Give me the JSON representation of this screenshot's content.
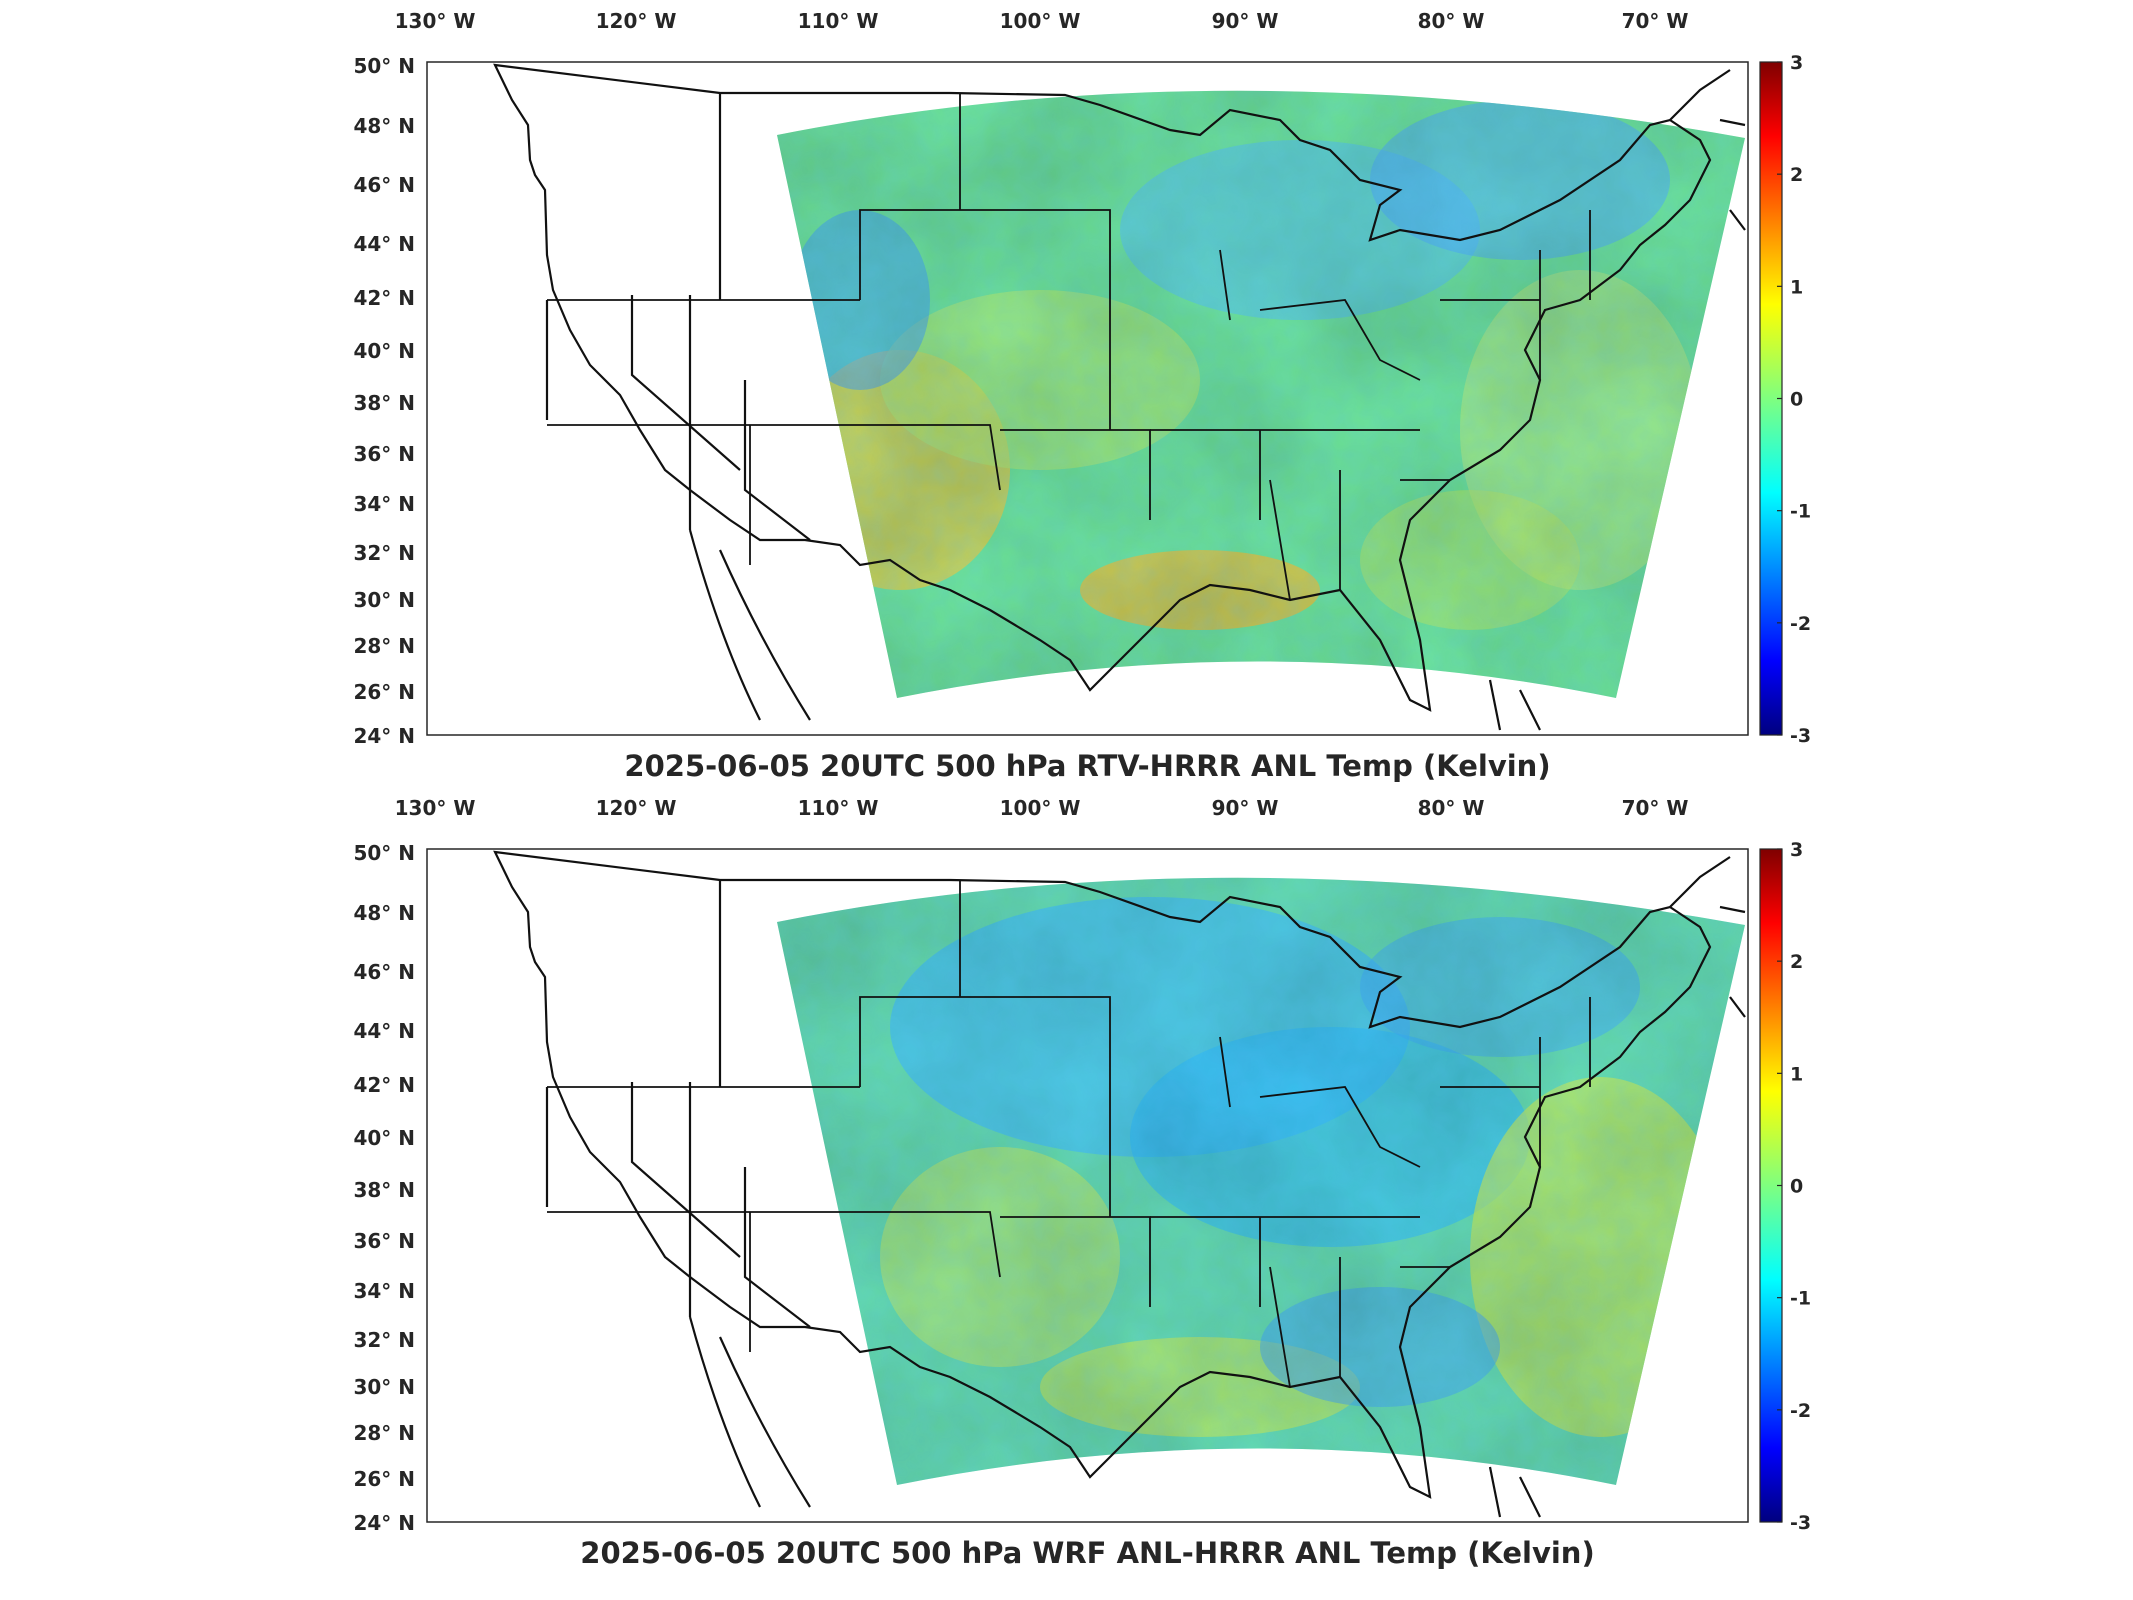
{
  "panels": [
    {
      "title": "2025-06-05 20UTC 500 hPa RTV-HRRR ANL Temp (Kelvin)",
      "lon_ticks": [
        "130° W",
        "120° W",
        "110° W",
        "100° W",
        "90° W",
        "80° W",
        "70° W"
      ],
      "lat_ticks": [
        "50° N",
        "48° N",
        "46° N",
        "44° N",
        "42° N",
        "40° N",
        "38° N",
        "36° N",
        "34° N",
        "32° N",
        "30° N",
        "28° N",
        "26° N",
        "24° N"
      ],
      "colorbar": {
        "range": [
          -3,
          3
        ],
        "ticks": [
          "3",
          "2",
          "1",
          "0",
          "-1",
          "-2",
          "-3"
        ]
      }
    },
    {
      "title": "2025-06-05 20UTC 500 hPa WRF ANL-HRRR ANL Temp (Kelvin)",
      "lon_ticks": [
        "130° W",
        "120° W",
        "110° W",
        "100° W",
        "90° W",
        "80° W",
        "70° W"
      ],
      "lat_ticks": [
        "50° N",
        "48° N",
        "46° N",
        "44° N",
        "42° N",
        "40° N",
        "38° N",
        "36° N",
        "34° N",
        "32° N",
        "30° N",
        "28° N",
        "26° N",
        "24° N"
      ],
      "colorbar": {
        "range": [
          -3,
          3
        ],
        "ticks": [
          "3",
          "2",
          "1",
          "0",
          "-1",
          "-2",
          "-3"
        ]
      }
    }
  ],
  "colormap": "jet"
}
